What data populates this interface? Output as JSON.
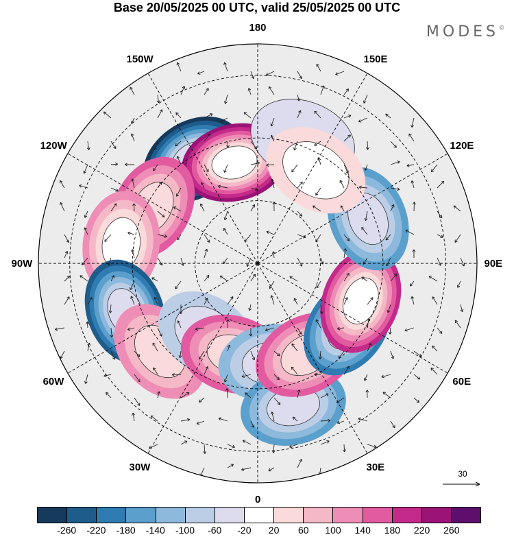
{
  "title": "Base 20/05/2025 00 UTC, valid 25/05/2025 00 UTC",
  "logo": "MODES",
  "logo_mark": "©",
  "longitude_labels": [
    {
      "text": "180",
      "lon": 180
    },
    {
      "text": "150E",
      "lon": 150
    },
    {
      "text": "120E",
      "lon": 120
    },
    {
      "text": "90E",
      "lon": 90
    },
    {
      "text": "60E",
      "lon": 60
    },
    {
      "text": "30E",
      "lon": 30
    },
    {
      "text": "0",
      "lon": 0
    },
    {
      "text": "30W",
      "lon": -30
    },
    {
      "text": "60W",
      "lon": -60
    },
    {
      "text": "90W",
      "lon": -90
    },
    {
      "text": "120W",
      "lon": -120
    },
    {
      "text": "150W",
      "lon": -150
    }
  ],
  "reference_vector": {
    "label": "30"
  },
  "colorbar": {
    "colors": [
      "#163a5c",
      "#1e5c8c",
      "#2f7cb3",
      "#5b9fcc",
      "#8cb9dc",
      "#bccde6",
      "#dcdcee",
      "#ffffff",
      "#fadada",
      "#f4b8c6",
      "#ee8db5",
      "#e25aa0",
      "#c42a8a",
      "#9b1377",
      "#5e0f6e"
    ],
    "ticks": [
      "-260",
      "-220",
      "-180",
      "-140",
      "-100",
      "-60",
      "-20",
      "20",
      "60",
      "100",
      "140",
      "180",
      "220",
      "260"
    ]
  },
  "anomaly_blobs": [
    {
      "lon": -148,
      "lat": 51,
      "value": -280
    },
    {
      "lon": -167,
      "lat": 57,
      "value": 260
    },
    {
      "lon": -118,
      "lat": 52,
      "value": 160
    },
    {
      "lon": -98,
      "lat": 46,
      "value": 140
    },
    {
      "lon": -70,
      "lat": 45,
      "value": -240
    },
    {
      "lon": -48,
      "lat": 48,
      "value": 120
    },
    {
      "lon": -35,
      "lat": 62,
      "value": -80
    },
    {
      "lon": -15,
      "lat": 60,
      "value": 160
    },
    {
      "lon": 8,
      "lat": 58,
      "value": -100
    },
    {
      "lon": 14,
      "lat": 43,
      "value": -140
    },
    {
      "lon": 28,
      "lat": 57,
      "value": 160
    },
    {
      "lon": 55,
      "lat": 55,
      "value": -180
    },
    {
      "lon": 70,
      "lat": 55,
      "value": 220
    },
    {
      "lon": 112,
      "lat": 52,
      "value": -160
    },
    {
      "lon": 160,
      "lat": 48,
      "value": -40
    },
    {
      "lon": 148,
      "lat": 55,
      "value": 60
    }
  ]
}
